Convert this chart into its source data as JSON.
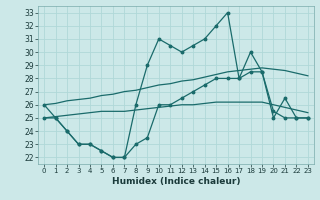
{
  "xlabel": "Humidex (Indice chaleur)",
  "xlim": [
    -0.5,
    23.5
  ],
  "ylim": [
    21.5,
    33.5
  ],
  "xticks": [
    0,
    1,
    2,
    3,
    4,
    5,
    6,
    7,
    8,
    9,
    10,
    11,
    12,
    13,
    14,
    15,
    16,
    17,
    18,
    19,
    20,
    21,
    22,
    23
  ],
  "yticks": [
    22,
    23,
    24,
    25,
    26,
    27,
    28,
    29,
    30,
    31,
    32,
    33
  ],
  "bg_color": "#cce8e8",
  "grid_color": "#b0d8d8",
  "line_color": "#1a6b6b",
  "line1_y": [
    26,
    25,
    24,
    23,
    23,
    22.5,
    22,
    22,
    26,
    29,
    31,
    30.5,
    30,
    30.5,
    31,
    32,
    33,
    28,
    30,
    28.5,
    25,
    26.5,
    25,
    25
  ],
  "line2_y": [
    25,
    25,
    24,
    23,
    23,
    22.5,
    22,
    22,
    23,
    23.5,
    26,
    26,
    26.5,
    27,
    27.5,
    28,
    28,
    28,
    28.5,
    28.5,
    25.5,
    25,
    25,
    25
  ],
  "line3_y": [
    25.0,
    25.1,
    25.2,
    25.3,
    25.4,
    25.5,
    25.5,
    25.5,
    25.6,
    25.7,
    25.8,
    25.9,
    26.0,
    26.0,
    26.1,
    26.2,
    26.2,
    26.2,
    26.2,
    26.2,
    26.0,
    25.8,
    25.6,
    25.4
  ],
  "line4_y": [
    26.0,
    26.1,
    26.3,
    26.4,
    26.5,
    26.7,
    26.8,
    27.0,
    27.1,
    27.3,
    27.5,
    27.6,
    27.8,
    27.9,
    28.1,
    28.3,
    28.5,
    28.6,
    28.7,
    28.8,
    28.7,
    28.6,
    28.4,
    28.2
  ]
}
